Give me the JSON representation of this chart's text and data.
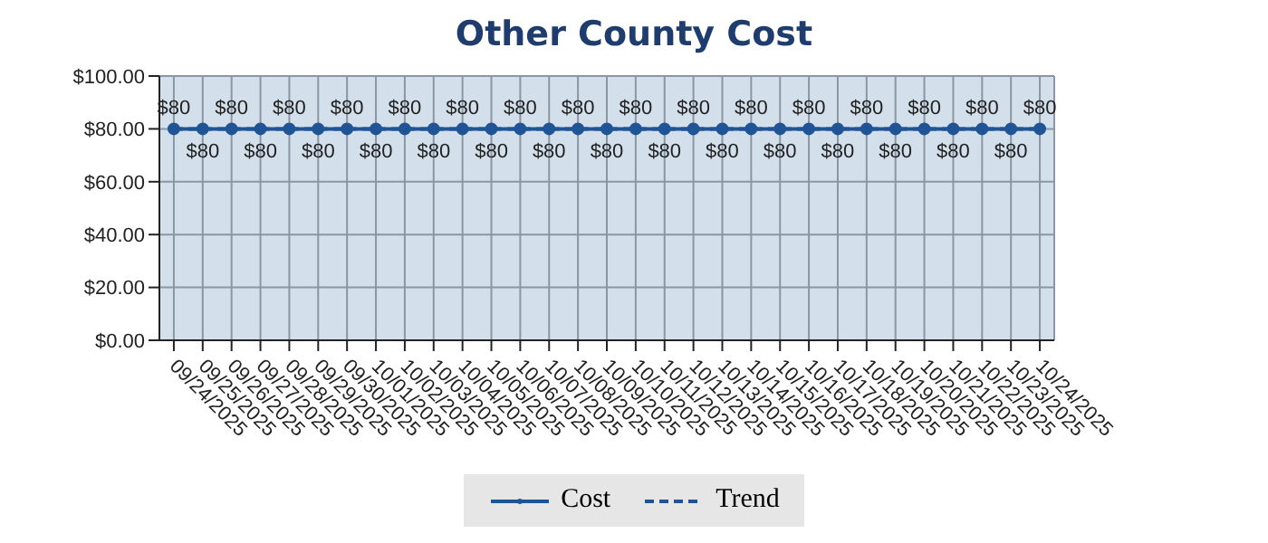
{
  "chart_data": {
    "type": "line",
    "title": "Other County Cost",
    "categories": [
      "09/24/2025",
      "09/25/2025",
      "09/26/2025",
      "09/27/2025",
      "09/28/2025",
      "09/29/2025",
      "09/30/2025",
      "10/01/2025",
      "10/02/2025",
      "10/03/2025",
      "10/04/2025",
      "10/05/2025",
      "10/06/2025",
      "10/07/2025",
      "10/08/2025",
      "10/09/2025",
      "10/10/2025",
      "10/11/2025",
      "10/12/2025",
      "10/13/2025",
      "10/14/2025",
      "10/15/2025",
      "10/16/2025",
      "10/17/2025",
      "10/18/2025",
      "10/19/2025",
      "10/20/2025",
      "10/21/2025",
      "10/22/2025",
      "10/23/2025",
      "10/24/2025"
    ],
    "series": [
      {
        "name": "Cost",
        "color": "#1f5596",
        "line_style": "solid",
        "marker": "circle",
        "values": [
          80,
          80,
          80,
          80,
          80,
          80,
          80,
          80,
          80,
          80,
          80,
          80,
          80,
          80,
          80,
          80,
          80,
          80,
          80,
          80,
          80,
          80,
          80,
          80,
          80,
          80,
          80,
          80,
          80,
          80,
          80
        ],
        "value_labels": [
          "$80",
          "$80",
          "$80",
          "$80",
          "$80",
          "$80",
          "$80",
          "$80",
          "$80",
          "$80",
          "$80",
          "$80",
          "$80",
          "$80",
          "$80",
          "$80",
          "$80",
          "$80",
          "$80",
          "$80",
          "$80",
          "$80",
          "$80",
          "$80",
          "$80",
          "$80",
          "$80",
          "$80",
          "$80",
          "$80",
          "$80"
        ]
      },
      {
        "name": "Trend",
        "color": "#1f5596",
        "line_style": "dashed",
        "marker": "none",
        "values": [
          80,
          80,
          80,
          80,
          80,
          80,
          80,
          80,
          80,
          80,
          80,
          80,
          80,
          80,
          80,
          80,
          80,
          80,
          80,
          80,
          80,
          80,
          80,
          80,
          80,
          80,
          80,
          80,
          80,
          80,
          80
        ]
      }
    ],
    "ylim": [
      0,
      100
    ],
    "yticks": [
      {
        "value": 0,
        "label": "$0.00"
      },
      {
        "value": 20,
        "label": "$20.00"
      },
      {
        "value": 40,
        "label": "$40.00"
      },
      {
        "value": 60,
        "label": "$60.00"
      },
      {
        "value": 80,
        "label": "$80.00"
      },
      {
        "value": 100,
        "label": "$100.00"
      }
    ],
    "grid": true,
    "legend": "bottom"
  }
}
